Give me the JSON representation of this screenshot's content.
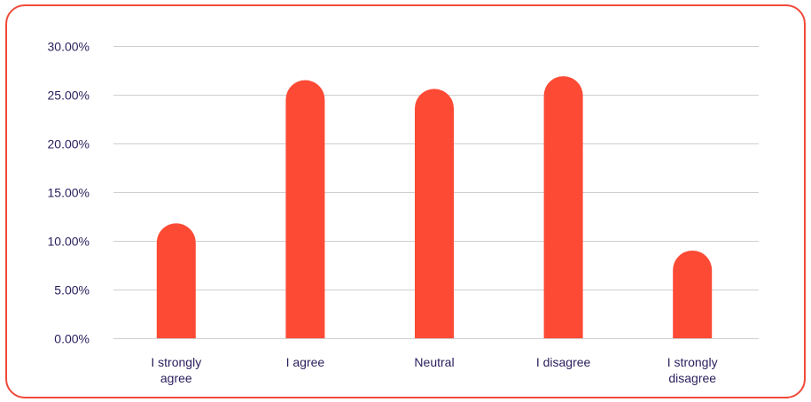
{
  "chart_data": {
    "type": "bar",
    "title": "",
    "xlabel": "",
    "ylabel": "",
    "categories": [
      [
        "I strongly",
        "agree"
      ],
      [
        "I agree"
      ],
      [
        "Neutral"
      ],
      [
        "I disagree"
      ],
      [
        "I strongly",
        "disagree"
      ]
    ],
    "values": [
      11.8,
      26.5,
      25.6,
      26.9,
      9.0
    ],
    "ylim": [
      0,
      30
    ],
    "yticks": [
      "0.00%",
      "5.00%",
      "10.00%",
      "15.00%",
      "20.00%",
      "25.00%",
      "30.00%"
    ],
    "ytick_values": [
      0,
      5,
      10,
      15,
      20,
      25,
      30
    ],
    "grid": true,
    "legend": "none",
    "colors": {
      "bar": "#fc4a35",
      "frame": "#f04a3a",
      "text": "#2a1d5c",
      "grid": "#cfcfcf"
    }
  }
}
